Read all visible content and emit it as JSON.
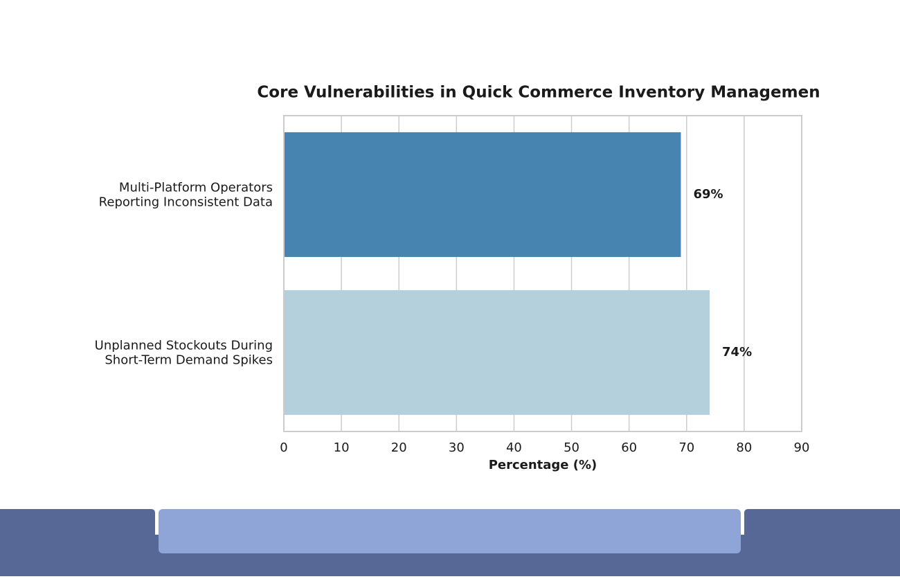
{
  "chart_data": {
    "type": "barh",
    "title": "Core Vulnerabilities in Quick Commerce Inventory Managemen",
    "categories": [
      "Multi-Platform Operators\nReporting Inconsistent Data",
      "Unplanned Stockouts During\nShort-Term Demand Spikes"
    ],
    "values": [
      69,
      74
    ],
    "value_labels": [
      "69%",
      "74%"
    ],
    "colors": [
      "#4884b0",
      "#b4d0dd"
    ],
    "xlabel": "Percentage (%)",
    "xlim": [
      0,
      90
    ],
    "xticks": [
      0,
      10,
      20,
      30,
      40,
      50,
      60,
      70,
      80,
      90
    ],
    "grid": true
  }
}
